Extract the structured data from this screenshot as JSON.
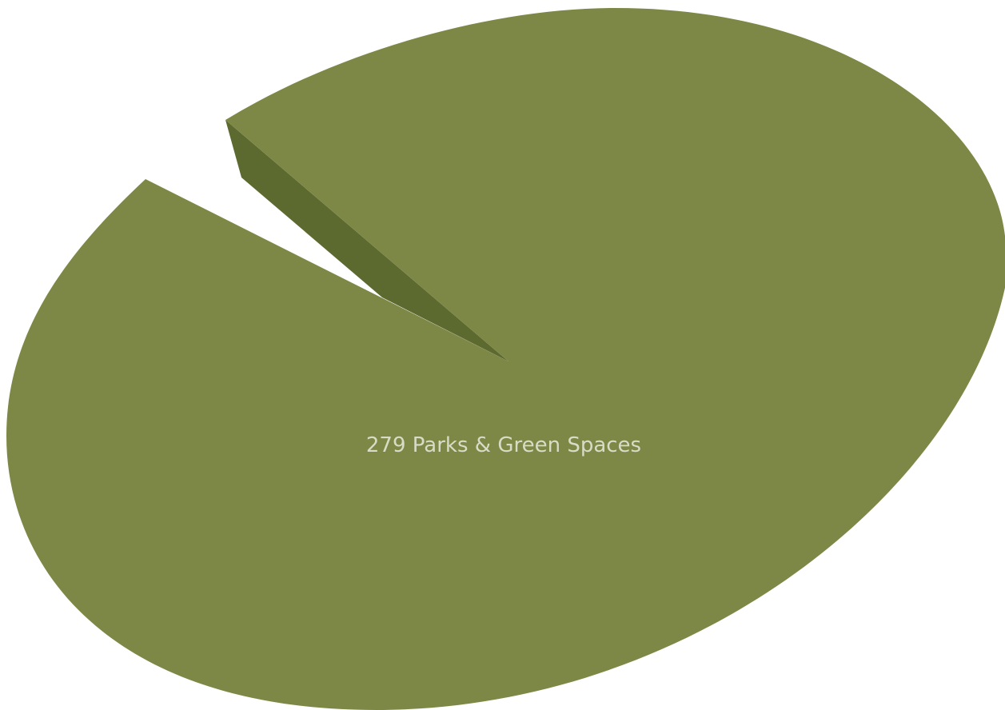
{
  "chart_data": {
    "type": "pie",
    "style": "3d-exploded",
    "slices": [
      {
        "label": "Parks & Green Spaces",
        "value": 279,
        "color": "#7e8846",
        "side_color": "#5c6a30"
      }
    ],
    "data_labels": [
      "279 Parks & Green Spaces"
    ],
    "label_color": "#d8dcc6"
  }
}
